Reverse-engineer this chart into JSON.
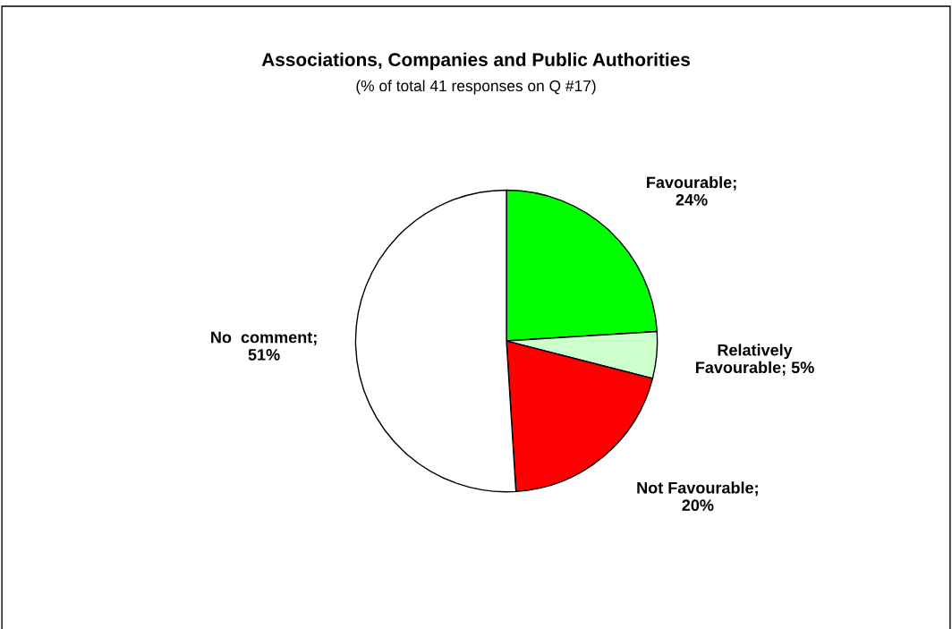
{
  "chart_data": {
    "type": "pie",
    "title": "Associations, Companies and Public Authorities",
    "subtitle": "(% of total 41 responses on Q #17)",
    "categories": [
      "Favourable",
      "Relatively Favourable",
      "Not Favourable",
      "No  comment"
    ],
    "values": [
      24,
      5,
      20,
      51
    ],
    "colors": [
      "#00ff00",
      "#ccffcc",
      "#ff0000",
      "#ffffff"
    ],
    "value_labels": [
      ";\n24%",
      "; 5%",
      ";\n20%",
      ";\n51%"
    ]
  }
}
